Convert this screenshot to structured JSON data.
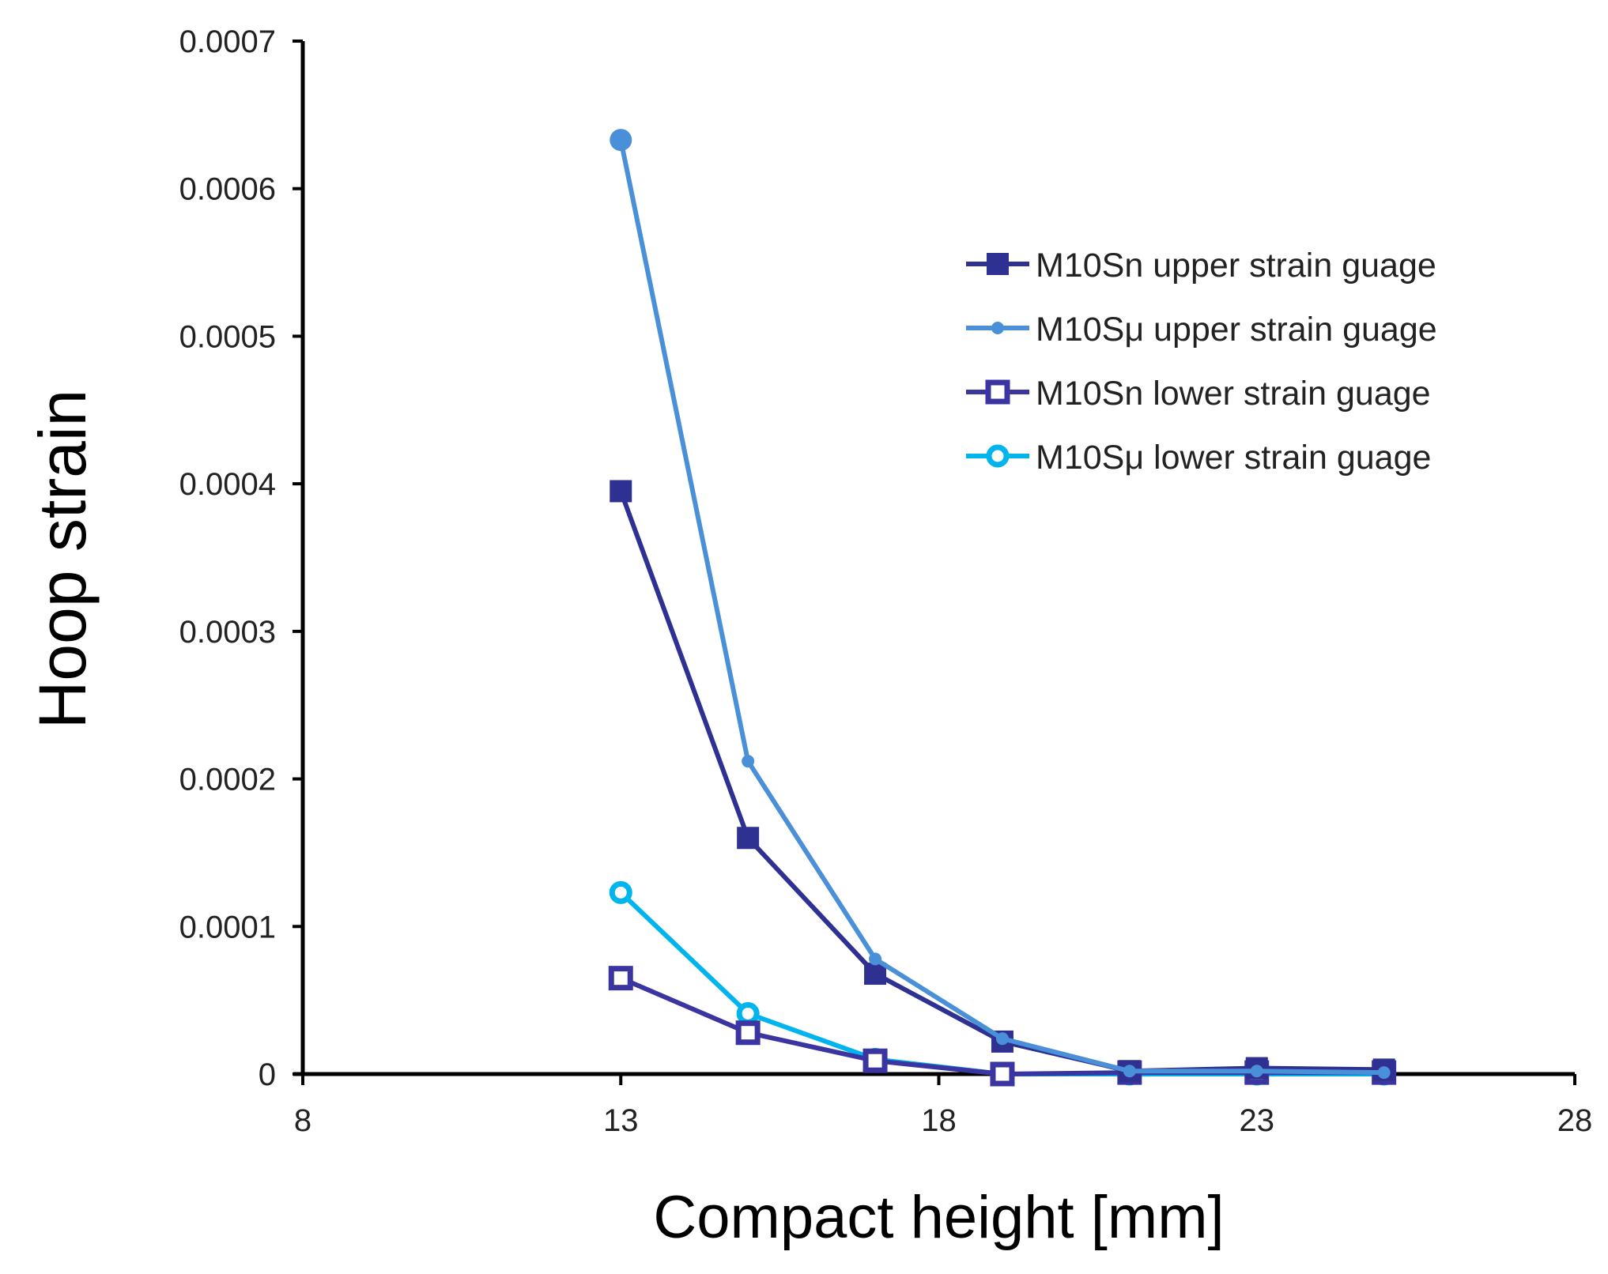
{
  "chart_data": {
    "type": "line",
    "title": "",
    "xlabel": "Compact height [mm]",
    "ylabel": "Hoop strain",
    "xlim": [
      8,
      28
    ],
    "ylim": [
      0,
      0.0007
    ],
    "xticks": [
      8,
      13,
      18,
      23,
      28
    ],
    "xtick_labels": [
      "8",
      "13",
      "18",
      "23",
      "28"
    ],
    "yticks": [
      0,
      0.0001,
      0.0002,
      0.0003,
      0.0004,
      0.0005,
      0.0006,
      0.0007
    ],
    "ytick_labels": [
      "0",
      "0.0001",
      "0.0002",
      "0.0003",
      "0.0004",
      "0.0005",
      "0.0006",
      "0.0007"
    ],
    "grid": false,
    "legend_position": "top-right",
    "series": [
      {
        "name": "M10Sn upper strain guage",
        "color": "#2E3192",
        "marker": "filled-square",
        "x": [
          13,
          15,
          17,
          19,
          21,
          23,
          25
        ],
        "y": [
          0.000395,
          0.00016,
          6.8e-05,
          2.2e-05,
          2e-06,
          4e-06,
          3e-06
        ]
      },
      {
        "name": "M10Sμ upper strain guage",
        "color": "#4A90D9",
        "marker": "filled-circle-small",
        "x": [
          13,
          15,
          17,
          19,
          21,
          23,
          25
        ],
        "y": [
          0.000633,
          0.000212,
          7.8e-05,
          2.4e-05,
          2e-06,
          2e-06,
          1e-06
        ]
      },
      {
        "name": "M10Sn lower strain guage",
        "color": "#3A35A0",
        "marker": "hollow-square",
        "x": [
          13,
          15,
          17,
          19,
          21,
          23,
          25
        ],
        "y": [
          6.5e-05,
          2.8e-05,
          9e-06,
          0.0,
          1e-06,
          1e-06,
          1e-06
        ]
      },
      {
        "name": "M10Sμ lower strain guage",
        "color": "#00B4EE",
        "marker": "hollow-circle",
        "x": [
          13,
          15,
          17,
          19,
          21,
          23,
          25
        ],
        "y": [
          0.000123,
          4.1e-05,
          1e-05,
          0.0,
          0.0,
          0.0,
          0.0
        ]
      }
    ]
  }
}
